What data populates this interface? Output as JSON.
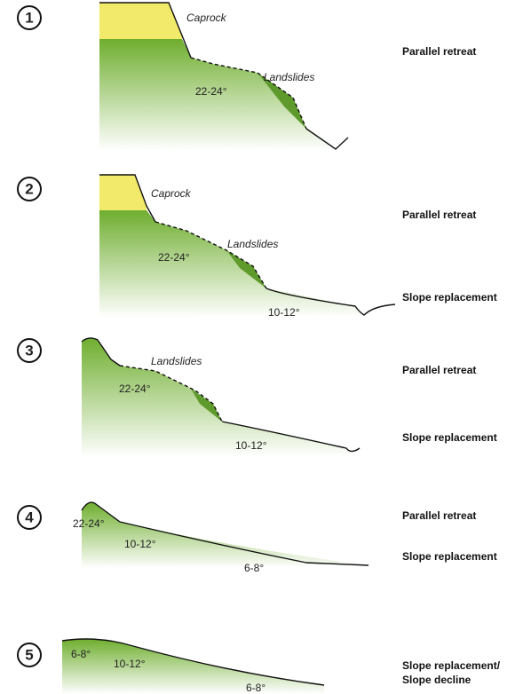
{
  "stages": [
    {
      "number": "1",
      "caprock": "Caprock",
      "landslides": "Landslides",
      "angles": [
        "22-24°"
      ],
      "processes": [
        "Parallel retreat"
      ]
    },
    {
      "number": "2",
      "caprock": "Caprock",
      "landslides": "Landslides",
      "angles": [
        "22-24°",
        "10-12°"
      ],
      "processes": [
        "Parallel retreat",
        "Slope replacement"
      ]
    },
    {
      "number": "3",
      "landslides": "Landslides",
      "angles": [
        "22-24°",
        "10-12°"
      ],
      "processes": [
        "Parallel retreat",
        "Slope replacement"
      ]
    },
    {
      "number": "4",
      "angles": [
        "22-24°",
        "10-12°",
        "6-8°"
      ],
      "processes": [
        "Parallel retreat",
        "Slope replacement"
      ]
    },
    {
      "number": "5",
      "angles": [
        "6-8°",
        "10-12°",
        "6-8°"
      ],
      "processes": [
        "Slope replacement/",
        "Slope decline"
      ]
    }
  ]
}
